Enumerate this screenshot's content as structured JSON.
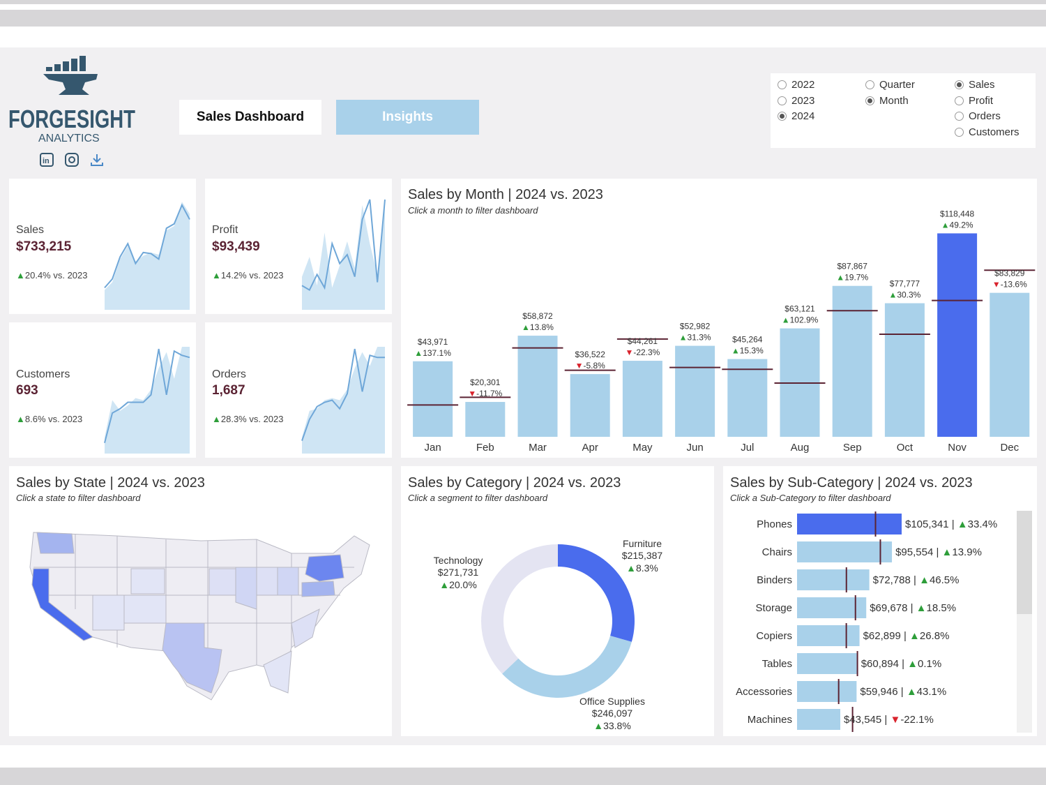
{
  "brand": {
    "name": "FORGESIGHT",
    "sub": "ANALYTICS"
  },
  "social": [
    "linkedin-icon",
    "instagram-icon",
    "download-icon"
  ],
  "nav": {
    "sales_dashboard": "Sales Dashboard",
    "insights": "Insights"
  },
  "filters": {
    "years": [
      {
        "label": "2022",
        "selected": false
      },
      {
        "label": "2023",
        "selected": false
      },
      {
        "label": "2024",
        "selected": true
      }
    ],
    "period": [
      {
        "label": "Quarter",
        "selected": false
      },
      {
        "label": "Month",
        "selected": true
      }
    ],
    "measures": [
      {
        "label": "Sales",
        "selected": true
      },
      {
        "label": "Profit",
        "selected": false
      },
      {
        "label": "Orders",
        "selected": false
      },
      {
        "label": "Customers",
        "selected": false
      }
    ]
  },
  "kpis": [
    {
      "label": "Sales",
      "value": "$733,215",
      "delta": "20.4% vs. 2023",
      "trend": "up"
    },
    {
      "label": "Profit",
      "value": "$93,439",
      "delta": "14.2% vs. 2023",
      "trend": "up"
    },
    {
      "label": "Customers",
      "value": "693",
      "delta": "8.6% vs. 2023",
      "trend": "up"
    },
    {
      "label": "Orders",
      "value": "1,687",
      "delta": "28.3% vs. 2023",
      "trend": "up"
    }
  ],
  "colors": {
    "bar": "#a9d1ea",
    "highlight": "#4a6ced",
    "ref": "#5b2333",
    "up": "#2e9e3a",
    "down": "#d9232d",
    "donut_bg": "#e4e4f2"
  },
  "monthly": {
    "title": "Sales by Month | 2024 vs. 2023",
    "subtitle": "Click a month to filter dashboard"
  },
  "state": {
    "title": "Sales by State | 2024 vs. 2023",
    "subtitle": "Click a state to filter dashboard"
  },
  "category": {
    "title": "Sales by Category | 2024 vs. 2023",
    "subtitle": "Click a segment to filter dashboard"
  },
  "subcat": {
    "title": "Sales by Sub-Category | 2024 vs. 2023",
    "subtitle": "Click a Sub-Category to filter dashboard"
  },
  "chart_data": [
    {
      "type": "bar",
      "id": "monthly",
      "title": "Sales by Month | 2024 vs. 2023",
      "categories": [
        "Jan",
        "Feb",
        "Mar",
        "Apr",
        "May",
        "Jun",
        "Jul",
        "Aug",
        "Sep",
        "Oct",
        "Nov",
        "Dec"
      ],
      "series": [
        {
          "name": "2024",
          "values": [
            43971,
            20301,
            58872,
            36522,
            44261,
            52982,
            45264,
            63121,
            87867,
            77777,
            118448,
            83829
          ]
        },
        {
          "name": "2023",
          "values": [
            18550,
            22990,
            51730,
            38770,
            56940,
            40350,
            39290,
            31280,
            73410,
            59710,
            79370,
            97000
          ]
        }
      ],
      "value_labels": [
        "$43,971",
        "$20,301",
        "$58,872",
        "$36,522",
        "$44,261",
        "$52,982",
        "$45,264",
        "$63,121",
        "$87,867",
        "$77,777",
        "$118,448",
        "$83,829"
      ],
      "deltas": [
        "137.1%",
        "-11.7%",
        "13.8%",
        "-5.8%",
        "-22.3%",
        "31.3%",
        "15.3%",
        "102.9%",
        "19.7%",
        "30.3%",
        "49.2%",
        "-13.6%"
      ],
      "delta_dir": [
        "up",
        "down",
        "up",
        "down",
        "down",
        "up",
        "up",
        "up",
        "up",
        "up",
        "up",
        "down"
      ],
      "highlight": "Nov",
      "ylim": [
        0,
        130000
      ]
    },
    {
      "type": "pie",
      "id": "category",
      "title": "Sales by Category | 2024 vs. 2023",
      "slices": [
        {
          "name": "Furniture",
          "value": 215387,
          "label": "$215,387",
          "delta": "8.3%",
          "dir": "up",
          "highlight": true
        },
        {
          "name": "Office Supplies",
          "value": 246097,
          "label": "$246,097",
          "delta": "33.8%",
          "dir": "up",
          "highlight": false
        },
        {
          "name": "Technology",
          "value": 271731,
          "label": "$271,731",
          "delta": "20.0%",
          "dir": "up",
          "highlight": false
        }
      ]
    },
    {
      "type": "bar",
      "id": "subcategory",
      "orientation": "horizontal",
      "title": "Sales by Sub-Category | 2024 vs. 2023",
      "categories": [
        "Phones",
        "Chairs",
        "Binders",
        "Storage",
        "Copiers",
        "Tables",
        "Accessories",
        "Machines"
      ],
      "series": [
        {
          "name": "2024",
          "values": [
            105341,
            95554,
            72788,
            69678,
            62899,
            60894,
            59946,
            43545
          ]
        },
        {
          "name": "2023",
          "values": [
            79000,
            83900,
            49700,
            58800,
            49600,
            60800,
            41900,
            55900
          ]
        }
      ],
      "value_labels": [
        "$105,341",
        "$95,554",
        "$72,788",
        "$69,678",
        "$62,899",
        "$60,894",
        "$59,946",
        "$43,545"
      ],
      "deltas": [
        "33.4%",
        "13.9%",
        "46.5%",
        "18.5%",
        "26.8%",
        "0.1%",
        "43.1%",
        "-22.1%"
      ],
      "delta_dir": [
        "up",
        "up",
        "up",
        "up",
        "up",
        "up",
        "up",
        "down"
      ],
      "highlight": "Phones",
      "xlim": [
        0,
        120000
      ]
    },
    {
      "type": "line",
      "id": "kpi-sparklines",
      "series": [
        {
          "name": "Sales",
          "cur": [
            20,
            28,
            48,
            60,
            42,
            52,
            51,
            46,
            74,
            78,
            95,
            82
          ],
          "prev": [
            18,
            25,
            46,
            58,
            44,
            49,
            52,
            50,
            72,
            76,
            98,
            87
          ]
        },
        {
          "name": "Profit",
          "cur": [
            22,
            18,
            32,
            20,
            60,
            42,
            50,
            30,
            82,
            100,
            25,
            100
          ],
          "prev": [
            30,
            48,
            22,
            70,
            20,
            40,
            62,
            38,
            95,
            60,
            32,
            95
          ]
        },
        {
          "name": "Customers",
          "cur": [
            10,
            38,
            42,
            48,
            48,
            48,
            55,
            98,
            55,
            96,
            92,
            90
          ],
          "prev": [
            15,
            50,
            40,
            45,
            52,
            50,
            60,
            80,
            95,
            70,
            100,
            100
          ]
        },
        {
          "name": "Orders",
          "cur": [
            12,
            32,
            44,
            48,
            50,
            42,
            56,
            98,
            58,
            92,
            90,
            90
          ],
          "prev": [
            15,
            40,
            42,
            50,
            52,
            50,
            60,
            80,
            95,
            82,
            100,
            100
          ]
        }
      ]
    }
  ]
}
